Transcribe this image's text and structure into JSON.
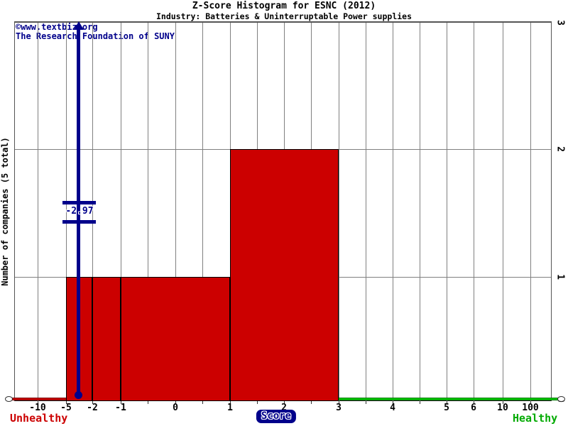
{
  "credit": {
    "line1": "©www.textbiz.org",
    "line2": "The Research Foundation of SUNY"
  },
  "colors": {
    "bar_red": "#CC0000",
    "marker_navy": "#00008B",
    "healthy_green": "#00CC00",
    "gridline_gray": "#808080"
  },
  "chart_data": {
    "type": "bar",
    "title": "Z-Score Histogram for ESNC (2012)",
    "subtitle": "Industry: Batteries & Uninterruptable Power supplies",
    "xlabel": "Score",
    "ylabel": "Number of companies (5 total)",
    "total_companies": 5,
    "x_tick_labels": [
      "-10",
      "-5",
      "-2",
      "-1",
      "0",
      "1",
      "2",
      "3",
      "4",
      "5",
      "6",
      "10",
      "100"
    ],
    "y_tick_labels": [
      "0",
      "1",
      "2",
      "3"
    ],
    "ylim": [
      0,
      3
    ],
    "grid": true,
    "bins": [
      {
        "range": [
          "-5",
          "-2"
        ],
        "count": 1
      },
      {
        "range": [
          "-2",
          "-1"
        ],
        "count": 1
      },
      {
        "range": [
          "-1",
          "1"
        ],
        "count": 1
      },
      {
        "range": [
          "1",
          "3"
        ],
        "count": 2
      }
    ],
    "company_marker": {
      "label": "-2.97",
      "value": -2.97
    },
    "annotations": {
      "left_caption": "Unhealthy",
      "right_caption": "Healthy"
    }
  }
}
